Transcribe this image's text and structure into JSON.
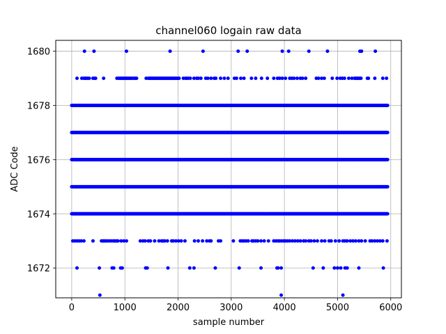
{
  "chart_data": {
    "type": "scatter",
    "title": "channel060 logain raw data",
    "xlabel": "sample number",
    "ylabel": "ADC Code",
    "xlim": [
      -300,
      6200
    ],
    "ylim": [
      1670.9,
      1680.4
    ],
    "xticks": [
      0,
      1000,
      2000,
      3000,
      4000,
      5000,
      6000
    ],
    "yticks": [
      1672,
      1674,
      1676,
      1678,
      1680
    ],
    "grid": true,
    "marker_color": "#0000ff",
    "dense_levels": [
      1674,
      1675,
      1676,
      1677,
      1678
    ],
    "dense_x_range": [
      0,
      5950
    ],
    "sparse_points": {
      "1680": [
        240,
        420,
        1030,
        1850,
        2470,
        3130,
        3300,
        3960,
        4080,
        4460,
        4810,
        5420,
        5450,
        5710
      ],
      "1679": [
        100,
        190,
        230,
        250,
        270,
        300,
        330,
        400,
        430,
        450,
        600,
        850,
        880,
        900,
        920,
        940,
        960,
        980,
        1000,
        1020,
        1040,
        1060,
        1080,
        1100,
        1120,
        1150,
        1180,
        1200,
        1220,
        1400,
        1440,
        1460,
        1480,
        1500,
        1520,
        1540,
        1560,
        1580,
        1600,
        1620,
        1640,
        1660,
        1680,
        1700,
        1720,
        1740,
        1760,
        1780,
        1800,
        1820,
        1840,
        1860,
        1880,
        1900,
        1920,
        1940,
        1960,
        1980,
        2000,
        2020,
        2100,
        2140,
        2160,
        2190,
        2230,
        2300,
        2350,
        2380,
        2430,
        2520,
        2560,
        2620,
        2680,
        2710,
        2800,
        2870,
        2940,
        3060,
        3100,
        3180,
        3240,
        3380,
        3460,
        3570,
        3680,
        3800,
        3870,
        3910,
        3960,
        4020,
        4100,
        4140,
        4180,
        4240,
        4300,
        4340,
        4400,
        4600,
        4640,
        4700,
        4750,
        4900,
        4990,
        5050,
        5090,
        5130,
        5210,
        5270,
        5320,
        5340,
        5360,
        5380,
        5400,
        5420,
        5440,
        5560,
        5580,
        5700,
        5850,
        5920
      ],
      "1673": [
        20,
        60,
        100,
        140,
        180,
        230,
        400,
        560,
        590,
        610,
        640,
        660,
        700,
        740,
        780,
        810,
        840,
        870,
        930,
        980,
        1030,
        1290,
        1340,
        1380,
        1440,
        1480,
        1560,
        1640,
        1690,
        1720,
        1750,
        1800,
        1880,
        1910,
        1960,
        2010,
        2060,
        2130,
        2310,
        2380,
        2460,
        2540,
        2590,
        2620,
        2760,
        2800,
        3040,
        3170,
        3210,
        3240,
        3280,
        3320,
        3390,
        3420,
        3460,
        3500,
        3560,
        3620,
        3700,
        3800,
        3840,
        3880,
        3910,
        3950,
        3990,
        4020,
        4060,
        4100,
        4150,
        4200,
        4250,
        4300,
        4360,
        4400,
        4460,
        4500,
        4560,
        4620,
        4700,
        4760,
        4840,
        4880,
        4960,
        5030,
        5100,
        5140,
        5180,
        5240,
        5290,
        5340,
        5400,
        5450,
        5520,
        5610,
        5650,
        5700,
        5750,
        5800,
        5850,
        5930
      ],
      "1672": [
        100,
        520,
        760,
        790,
        920,
        950,
        1390,
        1420,
        1810,
        2220,
        2300,
        2700,
        3150,
        3560,
        3860,
        3880,
        3940,
        4540,
        4730,
        4940,
        5000,
        5060,
        5140,
        5180,
        5400,
        5860
      ],
      "1671": [
        530,
        3940,
        5100
      ]
    }
  }
}
